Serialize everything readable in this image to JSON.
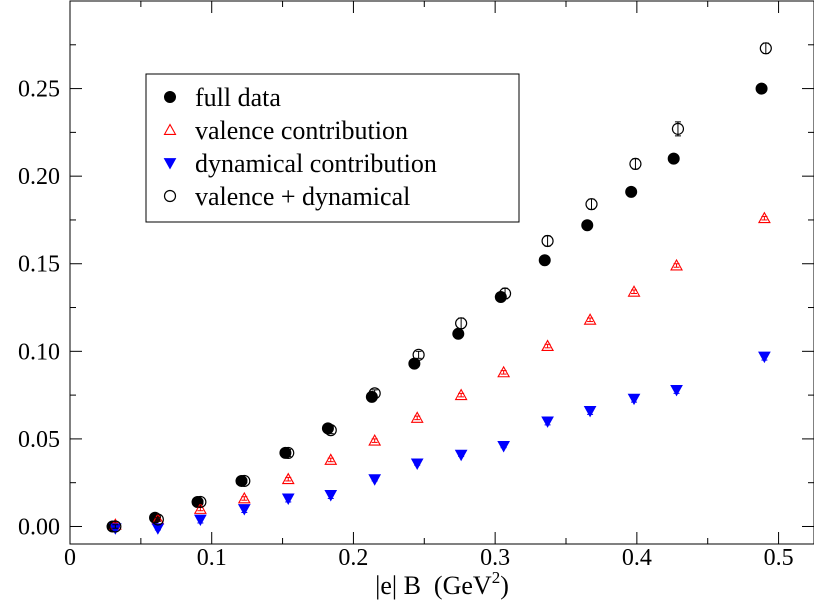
{
  "chart_data": {
    "type": "scatter",
    "title": "",
    "xlabel": "|e| B  (GeV",
    "xlabel_sup": "2",
    "xlabel_close": ")",
    "ylabel": "",
    "xlim": [
      0,
      0.525
    ],
    "ylim": [
      -0.01,
      0.3
    ],
    "x_ticks": [
      0,
      0.1,
      0.2,
      0.3,
      0.4,
      0.5
    ],
    "x_tick_labels": [
      "0",
      "0.1",
      "0.2",
      "0.3",
      "0.4",
      "0.5"
    ],
    "y_ticks": [
      0,
      0.05,
      0.1,
      0.15,
      0.2,
      0.25
    ],
    "y_tick_labels": [
      "0.00",
      "0.05",
      "0.10",
      "0.15",
      "0.20",
      "0.25"
    ],
    "grid": false,
    "legend_position": "top-left",
    "series": [
      {
        "name": "full data",
        "marker": "filled-circle",
        "color": "#000000",
        "x": [
          0.03,
          0.06,
          0.09,
          0.121,
          0.152,
          0.182,
          0.213,
          0.243,
          0.274,
          0.304,
          0.335,
          0.365,
          0.396,
          0.426,
          0.488
        ],
        "y": [
          0.0,
          0.005,
          0.014,
          0.026,
          0.042,
          0.056,
          0.074,
          0.093,
          0.11,
          0.131,
          0.152,
          0.172,
          0.191,
          0.21,
          0.25
        ],
        "err": [
          0.001,
          0.001,
          0.001,
          0.001,
          0.002,
          0.002,
          0.002,
          0.002,
          0.002,
          0.002,
          0.002,
          0.002,
          0.002,
          0.002,
          0.002
        ]
      },
      {
        "name": "valence contribution",
        "marker": "open-triangle-up",
        "color": "#ff0000",
        "x": [
          0.032,
          0.062,
          0.092,
          0.123,
          0.154,
          0.184,
          0.215,
          0.245,
          0.276,
          0.306,
          0.337,
          0.367,
          0.398,
          0.428,
          0.49
        ],
        "y": [
          0.001,
          0.004,
          0.01,
          0.016,
          0.027,
          0.038,
          0.049,
          0.062,
          0.075,
          0.088,
          0.103,
          0.118,
          0.134,
          0.149,
          0.176
        ],
        "err": [
          0.001,
          0.001,
          0.001,
          0.001,
          0.001,
          0.001,
          0.001,
          0.001,
          0.001,
          0.001,
          0.001,
          0.001,
          0.001,
          0.001,
          0.001
        ]
      },
      {
        "name": "dynamical contribution",
        "marker": "filled-triangle-down",
        "color": "#0000ff",
        "x": [
          0.032,
          0.062,
          0.092,
          0.123,
          0.154,
          0.184,
          0.215,
          0.245,
          0.276,
          0.306,
          0.337,
          0.367,
          0.398,
          0.428,
          0.49
        ],
        "y": [
          -0.001,
          -0.001,
          0.004,
          0.01,
          0.016,
          0.018,
          0.027,
          0.036,
          0.041,
          0.046,
          0.06,
          0.066,
          0.073,
          0.078,
          0.097
        ],
        "err": [
          0.001,
          0.001,
          0.002,
          0.002,
          0.002,
          0.002,
          0.001,
          0.001,
          0.001,
          0.001,
          0.002,
          0.002,
          0.002,
          0.002,
          0.002
        ]
      },
      {
        "name": "valence + dynamical",
        "marker": "open-circle",
        "color": "#000000",
        "x": [
          0.032,
          0.062,
          0.092,
          0.123,
          0.154,
          0.184,
          0.215,
          0.246,
          0.276,
          0.307,
          0.337,
          0.368,
          0.399,
          0.429,
          0.491
        ],
        "y": [
          0.0,
          0.004,
          0.014,
          0.026,
          0.042,
          0.055,
          0.076,
          0.098,
          0.116,
          0.133,
          0.163,
          0.184,
          0.207,
          0.227,
          0.273
        ],
        "err": [
          0.001,
          0.001,
          0.001,
          0.001,
          0.002,
          0.002,
          0.002,
          0.002,
          0.003,
          0.003,
          0.003,
          0.003,
          0.003,
          0.004,
          0.003
        ]
      }
    ]
  }
}
